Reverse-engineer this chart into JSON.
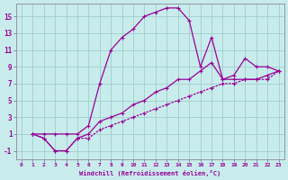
{
  "xlabel": "Windchill (Refroidissement éolien,°C)",
  "ylabel": "",
  "bg_color": "#c8ecec",
  "line_color": "#990099",
  "grid_color": "#a0cece",
  "xlim": [
    -0.5,
    23.5
  ],
  "ylim": [
    -2,
    16.5
  ],
  "xticks": [
    0,
    1,
    2,
    3,
    4,
    5,
    6,
    7,
    8,
    9,
    10,
    11,
    12,
    13,
    14,
    15,
    16,
    17,
    18,
    19,
    20,
    21,
    22,
    23
  ],
  "yticks": [
    -1,
    1,
    3,
    5,
    7,
    9,
    11,
    13,
    15
  ],
  "series1_x": [
    1,
    2,
    3,
    4,
    5,
    6,
    7,
    8,
    9,
    10,
    11,
    12,
    13,
    14,
    15,
    16,
    17,
    18,
    19,
    20,
    21,
    22,
    23
  ],
  "series1_y": [
    1,
    1,
    1,
    1,
    1,
    2,
    7,
    11,
    12.5,
    13.5,
    15,
    15.5,
    16,
    16,
    14.5,
    9,
    12.5,
    7.5,
    8,
    10,
    9,
    9,
    8.5
  ],
  "series2_x": [
    1,
    2,
    3,
    4,
    5,
    6,
    7,
    8,
    9,
    10,
    11,
    12,
    13,
    14,
    15,
    16,
    17,
    18,
    19,
    20,
    21,
    22,
    23
  ],
  "series2_y": [
    1,
    0.5,
    -1,
    -1,
    0.5,
    1,
    2.5,
    3,
    3.5,
    4.5,
    5,
    6,
    6.5,
    7.5,
    7.5,
    8.5,
    9.5,
    7.5,
    7.5,
    7.5,
    7.5,
    8,
    8.5
  ],
  "series3_x": [
    1,
    2,
    3,
    4,
    5,
    6,
    7,
    8,
    9,
    10,
    11,
    12,
    13,
    14,
    15,
    16,
    17,
    18,
    19,
    20,
    21,
    22,
    23
  ],
  "series3_y": [
    1,
    0.5,
    -1,
    -1,
    0.5,
    0.5,
    1.5,
    2,
    2.5,
    3,
    3.5,
    4,
    4.5,
    5,
    5.5,
    6,
    6.5,
    7,
    7,
    7.5,
    7.5,
    7.5,
    8.5
  ]
}
